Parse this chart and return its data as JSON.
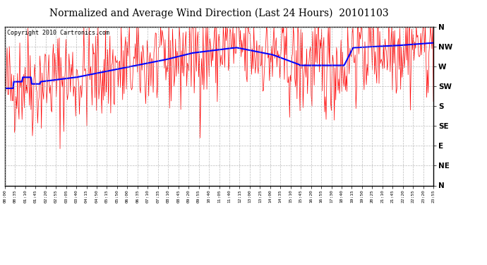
{
  "title": "Normalized and Average Wind Direction (Last 24 Hours)  20101103",
  "copyright_text": "Copyright 2010 Cartronics.com",
  "ytick_labels": [
    "N",
    "NW",
    "W",
    "SW",
    "S",
    "SE",
    "E",
    "NE",
    "N"
  ],
  "ytick_values": [
    360,
    315,
    270,
    225,
    180,
    135,
    90,
    45,
    0
  ],
  "ylim": [
    0,
    360
  ],
  "xtick_labels": [
    "00:00",
    "00:35",
    "01:10",
    "01:45",
    "02:20",
    "02:55",
    "03:05",
    "03:40",
    "04:15",
    "04:50",
    "05:15",
    "05:50",
    "06:00",
    "06:35",
    "07:10",
    "07:35",
    "08:10",
    "08:45",
    "09:20",
    "09:55",
    "10:40",
    "11:05",
    "11:40",
    "12:15",
    "13:00",
    "13:25",
    "14:00",
    "14:35",
    "15:10",
    "15:45",
    "16:20",
    "16:55",
    "17:30",
    "18:40",
    "19:15",
    "19:50",
    "20:25",
    "21:10",
    "21:45",
    "22:20",
    "22:55",
    "23:20",
    "23:55"
  ],
  "background_color": "#ffffff",
  "plot_bg_color": "#ffffff",
  "grid_color": "#aaaaaa",
  "red_line_color": "#ff0000",
  "blue_line_color": "#0000ff",
  "title_fontsize": 10,
  "copyright_fontsize": 6
}
